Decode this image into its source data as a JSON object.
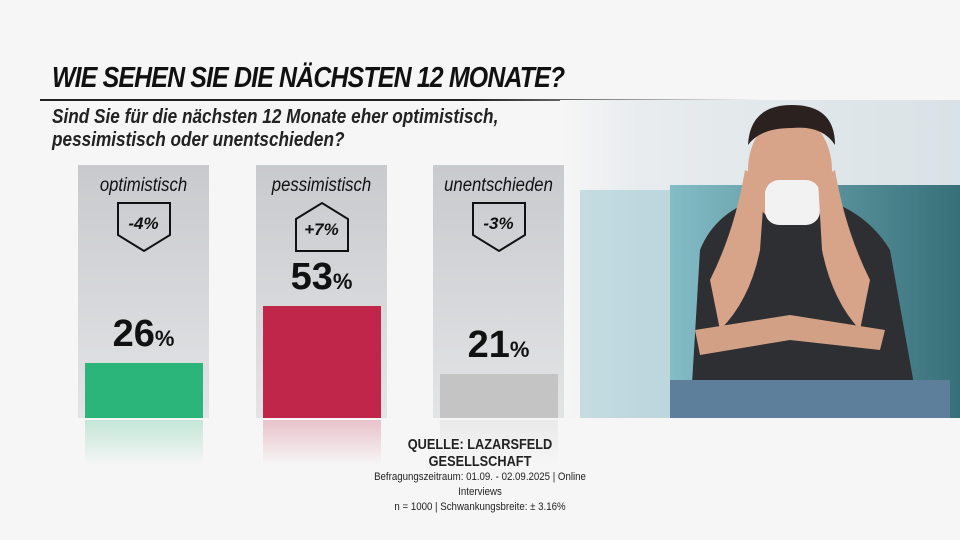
{
  "header": {
    "title": "WIE SEHEN SIE DIE NÄCHSTEN 12 MONATE?",
    "subtitle": "Sind Sie für die nächsten 12 Monate eher optimistisch, pessimistisch oder unentschieden?"
  },
  "chart_data": {
    "type": "bar",
    "categories": [
      "optimistisch",
      "pessimistisch",
      "unentschieden"
    ],
    "values": [
      26,
      53,
      21
    ],
    "value_labels": [
      "26",
      "53",
      "21"
    ],
    "unit": "%",
    "changes": [
      "-4%",
      "+7%",
      "-3%"
    ],
    "change_direction": [
      "down",
      "up",
      "down"
    ],
    "colors": [
      "#2bb57b",
      "#c0264a",
      "#c4c4c4"
    ],
    "ylim": [
      0,
      60
    ]
  },
  "source": {
    "label": "QUELLE:  LAZARSFELD GESELLSCHAFT",
    "period": "Befragungszeitraum: 01.09. - 02.09.2025 | Online Interviews",
    "sample": "n = 1000 |  Schwankungsbreite: ± 3.16%"
  }
}
